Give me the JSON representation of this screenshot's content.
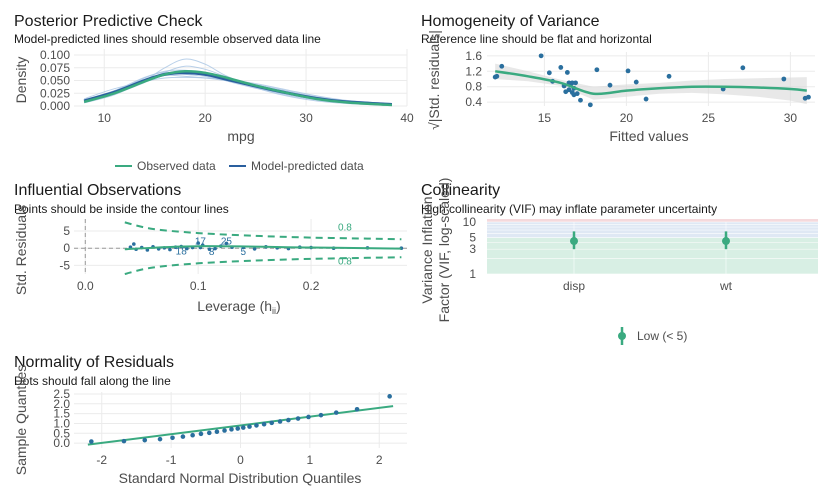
{
  "colors": {
    "observed": "#3aaa80",
    "predicted": "#2a5f9e",
    "predicted_light": "#a8c4e3",
    "points": "#2a6f9e",
    "low_band": "#d8efe4",
    "mid_band": "#dfe8f4",
    "high_band": "#f5d9dc"
  },
  "chart_data": [
    {
      "type": "line",
      "title": "Posterior Predictive Check",
      "subtitle": "Model-predicted lines should resemble observed data line",
      "xlabel": "mpg",
      "ylabel": "Density",
      "xlim": [
        7,
        40
      ],
      "ylim": [
        0,
        0.1
      ],
      "x_ticks": [
        "10",
        "20",
        "30",
        "40"
      ],
      "y_ticks": [
        "0.000",
        "0.025",
        "0.050",
        "0.075",
        "0.100"
      ],
      "legend": [
        "Observed data",
        "Model-predicted data"
      ],
      "legend_position": "bottom",
      "observed": {
        "x": [
          8,
          11,
          14,
          16,
          18,
          20,
          22,
          25,
          28,
          31,
          34,
          38.5
        ],
        "y": [
          0.008,
          0.025,
          0.048,
          0.062,
          0.068,
          0.065,
          0.056,
          0.04,
          0.026,
          0.014,
          0.007,
          0.002
        ]
      },
      "predicted_mean": {
        "x": [
          8,
          11,
          14,
          16,
          18,
          20,
          22,
          25,
          28,
          31,
          34,
          38.5
        ],
        "y": [
          0.01,
          0.027,
          0.05,
          0.062,
          0.065,
          0.062,
          0.053,
          0.039,
          0.026,
          0.015,
          0.008,
          0.003
        ]
      },
      "predicted_draws": [
        {
          "x": [
            8,
            11,
            14,
            16,
            18,
            20,
            22,
            25,
            28,
            31,
            34,
            38.5
          ],
          "y": [
            0.006,
            0.022,
            0.05,
            0.075,
            0.092,
            0.082,
            0.06,
            0.036,
            0.02,
            0.01,
            0.005,
            0.001
          ]
        },
        {
          "x": [
            8,
            11,
            14,
            16,
            18,
            20,
            22,
            25,
            28,
            31,
            34,
            38.5
          ],
          "y": [
            0.012,
            0.03,
            0.052,
            0.06,
            0.058,
            0.055,
            0.05,
            0.042,
            0.03,
            0.018,
            0.01,
            0.004
          ]
        },
        {
          "x": [
            8,
            11,
            14,
            16,
            18,
            20,
            22,
            25,
            28,
            31,
            34,
            38.5
          ],
          "y": [
            0.009,
            0.028,
            0.055,
            0.068,
            0.07,
            0.064,
            0.05,
            0.035,
            0.024,
            0.014,
            0.007,
            0.002
          ]
        },
        {
          "x": [
            8,
            11,
            14,
            16,
            18,
            20,
            22,
            25,
            28,
            31,
            34,
            38.5
          ],
          "y": [
            0.014,
            0.034,
            0.048,
            0.055,
            0.056,
            0.055,
            0.052,
            0.044,
            0.032,
            0.02,
            0.011,
            0.004
          ]
        },
        {
          "x": [
            8,
            11,
            14,
            16,
            18,
            20,
            22,
            25,
            28,
            31,
            34,
            38.5
          ],
          "y": [
            0.007,
            0.024,
            0.046,
            0.066,
            0.078,
            0.072,
            0.058,
            0.038,
            0.022,
            0.012,
            0.006,
            0.002
          ]
        },
        {
          "x": [
            8,
            11,
            14,
            16,
            18,
            20,
            22,
            25,
            28,
            31,
            34,
            38.5
          ],
          "y": [
            0.011,
            0.03,
            0.056,
            0.066,
            0.062,
            0.058,
            0.05,
            0.04,
            0.028,
            0.016,
            0.008,
            0.003
          ]
        }
      ]
    },
    {
      "type": "scatter",
      "title": "Homogeneity of Variance",
      "subtitle": "Reference line should be flat and horizontal",
      "xlabel": "Fitted values",
      "ylabel": "√|Std. residuals|",
      "xlim": [
        11.5,
        31.5
      ],
      "ylim": [
        0.3,
        1.7
      ],
      "x_ticks": [
        "15",
        "20",
        "25",
        "30"
      ],
      "y_ticks": [
        "0.4",
        "0.8",
        "1.2",
        "1.6"
      ],
      "points": {
        "x": [
          12.0,
          12.1,
          12.4,
          14.8,
          15.3,
          15.5,
          16.0,
          16.2,
          16.3,
          16.4,
          16.5,
          16.5,
          16.6,
          16.7,
          16.7,
          16.8,
          16.8,
          16.9,
          17.0,
          17.2,
          17.8,
          18.2,
          19.0,
          20.1,
          20.6,
          21.2,
          22.6,
          25.9,
          27.1,
          29.6,
          30.9,
          31.1
        ],
        "y": [
          1.05,
          1.07,
          1.33,
          1.6,
          1.16,
          0.94,
          1.3,
          0.82,
          0.67,
          1.17,
          0.9,
          0.72,
          0.86,
          0.65,
          0.9,
          0.59,
          0.76,
          0.9,
          0.62,
          0.45,
          0.33,
          1.24,
          0.84,
          1.21,
          0.92,
          0.48,
          1.07,
          0.74,
          1.29,
          1.0,
          0.5,
          0.53
        ]
      },
      "smooth": {
        "x": [
          12,
          14,
          16,
          18,
          20,
          22,
          24,
          26,
          28,
          30,
          31
        ],
        "y": [
          1.2,
          1.07,
          0.9,
          0.62,
          0.7,
          0.76,
          0.8,
          0.8,
          0.78,
          0.74,
          0.7
        ]
      },
      "smooth_band": {
        "upper": [
          1.4,
          1.2,
          0.98,
          0.8,
          0.86,
          0.9,
          0.96,
          1.0,
          1.02,
          1.04,
          1.05
        ],
        "lower": [
          1.0,
          0.94,
          0.82,
          0.46,
          0.54,
          0.62,
          0.64,
          0.6,
          0.54,
          0.44,
          0.35
        ]
      }
    },
    {
      "type": "scatter",
      "title": "Influential Observations",
      "subtitle": "Points should be inside the contour lines",
      "xlabel": "Leverage (h",
      "xlabel_sub": "ii",
      "xlabel_end": ")",
      "ylabel": "Std. Residuals",
      "xlim": [
        -0.01,
        0.285
      ],
      "ylim": [
        -7.5,
        8.5
      ],
      "x_ticks": [
        "0.0",
        "0.1",
        "0.2"
      ],
      "y_ticks": [
        "-5",
        "0",
        "5"
      ],
      "contour_label": "0.8",
      "points": {
        "x": [
          0.04,
          0.043,
          0.045,
          0.05,
          0.055,
          0.06,
          0.065,
          0.07,
          0.075,
          0.08,
          0.085,
          0.09,
          0.095,
          0.1,
          0.102,
          0.104,
          0.11,
          0.115,
          0.12,
          0.125,
          0.13,
          0.14,
          0.15,
          0.16,
          0.17,
          0.18,
          0.19,
          0.2,
          0.22,
          0.25,
          0.28
        ],
        "y": [
          0.3,
          1.2,
          -0.3,
          0.2,
          -0.5,
          0.4,
          -0.2,
          0.1,
          -0.4,
          0.3,
          0.5,
          -0.1,
          0.2,
          1.5,
          0.2,
          0.9,
          -0.3,
          -0.1,
          0.6,
          1.4,
          0.3,
          0.2,
          -0.2,
          0.4,
          0.1,
          -0.1,
          0.3,
          0.2,
          0.0,
          0.1,
          0.0
        ]
      },
      "point_labels": [
        {
          "text": "17",
          "x": 0.102,
          "y": 2.3
        },
        {
          "text": "25",
          "x": 0.125,
          "y": 2.3
        },
        {
          "text": "18",
          "x": 0.085,
          "y": -0.6
        },
        {
          "text": "8",
          "x": 0.112,
          "y": -0.8
        },
        {
          "text": "5",
          "x": 0.14,
          "y": -0.8
        }
      ],
      "smooth": {
        "x": [
          0.035,
          0.1,
          0.2,
          0.28
        ],
        "y": [
          -0.3,
          0.6,
          0.2,
          -0.1
        ]
      },
      "contour_upper": {
        "x": [
          0.035,
          0.06,
          0.1,
          0.15,
          0.2,
          0.25,
          0.28
        ],
        "y": [
          7.5,
          5.6,
          4.4,
          3.6,
          3.1,
          2.8,
          2.6
        ]
      },
      "contour_lower": {
        "x": [
          0.035,
          0.06,
          0.1,
          0.15,
          0.2,
          0.25,
          0.28
        ],
        "y": [
          -7.5,
          -5.6,
          -4.4,
          -3.6,
          -3.1,
          -2.8,
          -2.6
        ]
      }
    },
    {
      "type": "scatter",
      "title": "Collinearity",
      "subtitle": "High collinearity (VIF) may inflate parameter uncertainty",
      "xlabel": "",
      "ylabel": "Variance Inflation",
      "ylabel2": "Factor (VIF, log-scaled)",
      "log_y": true,
      "ylim": [
        1,
        10
      ],
      "y_ticks": [
        "1",
        "3",
        "5",
        "10"
      ],
      "categories": [
        "disp",
        "wt"
      ],
      "vif": [
        4.3,
        4.3
      ],
      "ci_low": [
        3.0,
        3.0
      ],
      "ci_high": [
        6.6,
        6.6
      ],
      "legend": [
        "Low (< 5)"
      ],
      "legend_position": "bottom"
    },
    {
      "type": "scatter",
      "title": "Normality of Residuals",
      "subtitle": "Dots should fall along the line",
      "xlabel": "Standard Normal Distribution Quantiles",
      "ylabel": "Sample Quantiles",
      "xlim": [
        -2.4,
        2.4
      ],
      "ylim": [
        -0.25,
        2.6
      ],
      "x_ticks": [
        "-2",
        "-1",
        "0",
        "1",
        "2"
      ],
      "y_ticks": [
        "0.0",
        "0.5",
        "1.0",
        "1.5",
        "2.0",
        "2.5"
      ],
      "points": {
        "x": [
          -2.15,
          -1.68,
          -1.38,
          -1.16,
          -0.98,
          -0.83,
          -0.69,
          -0.57,
          -0.45,
          -0.34,
          -0.23,
          -0.13,
          -0.04,
          0.04,
          0.13,
          0.23,
          0.34,
          0.45,
          0.57,
          0.69,
          0.83,
          0.98,
          1.16,
          1.38,
          1.68,
          2.15
        ],
        "y": [
          0.08,
          0.1,
          0.15,
          0.2,
          0.27,
          0.33,
          0.4,
          0.47,
          0.52,
          0.58,
          0.64,
          0.7,
          0.74,
          0.79,
          0.84,
          0.9,
          0.96,
          1.03,
          1.1,
          1.17,
          1.25,
          1.33,
          1.42,
          1.55,
          1.72,
          2.38
        ]
      },
      "ref_line": {
        "x": [
          -2.2,
          2.2
        ],
        "y": [
          -0.08,
          1.88
        ]
      }
    }
  ]
}
